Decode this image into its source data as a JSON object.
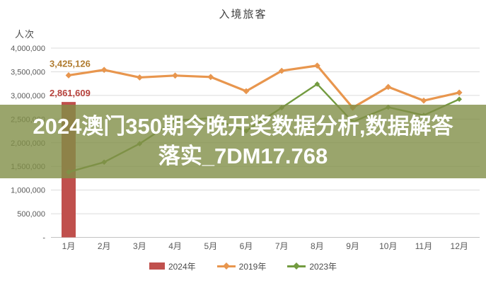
{
  "chart": {
    "title": "入境旅客",
    "y_unit": "人次",
    "watermark": {
      "line1": "2024澳门350期今晚开奖数据分析,数据解答",
      "line2": "落实_7DM17.768"
    }
  },
  "chart_data": {
    "type": "combo-bar-line",
    "title": "入境旅客",
    "ylabel": "人次",
    "xlabel": "",
    "grid": true,
    "legend_position": "bottom",
    "ylim": [
      0,
      4000000
    ],
    "ytick_step": 500000,
    "ytick_labels": [
      "4,000,000",
      "3,500,000",
      "3,000,000",
      "2,500,000",
      "2,000,000",
      "1,500,000",
      "1,000,000",
      "500,000",
      "-"
    ],
    "categories": [
      "1月",
      "2月",
      "3月",
      "4月",
      "5月",
      "6月",
      "7月",
      "8月",
      "9月",
      "10月",
      "11月",
      "12月"
    ],
    "series": [
      {
        "name": "2024年",
        "type": "bar",
        "color": "#C0504D",
        "values": [
          2861609,
          null,
          null,
          null,
          null,
          null,
          null,
          null,
          null,
          null,
          null,
          null
        ]
      },
      {
        "name": "2019年",
        "type": "line",
        "color": "#E8964E",
        "values": [
          3425126,
          3540000,
          3380000,
          3420000,
          3390000,
          3090000,
          3520000,
          3630000,
          2740000,
          3180000,
          2890000,
          3060000
        ]
      },
      {
        "name": "2023年",
        "type": "line",
        "color": "#739B40",
        "values": [
          1380000,
          1590000,
          1980000,
          2470000,
          2520000,
          2250000,
          2740000,
          3240000,
          2440000,
          2750000,
          2580000,
          2920000
        ]
      }
    ],
    "data_labels": [
      {
        "series": 0,
        "index": 0,
        "text": "2,861,609",
        "color": "#B6423C"
      },
      {
        "series": 1,
        "index": 0,
        "text": "3,425,126",
        "color": "#B07C30"
      }
    ],
    "colors": {
      "gridline": "#DCDCDC",
      "axis_line": "#C3C3C3",
      "tick_text": "#595959",
      "watermark_band": "rgba(129,143,71,0.8)",
      "watermark_text": "#FFFFFF"
    }
  }
}
